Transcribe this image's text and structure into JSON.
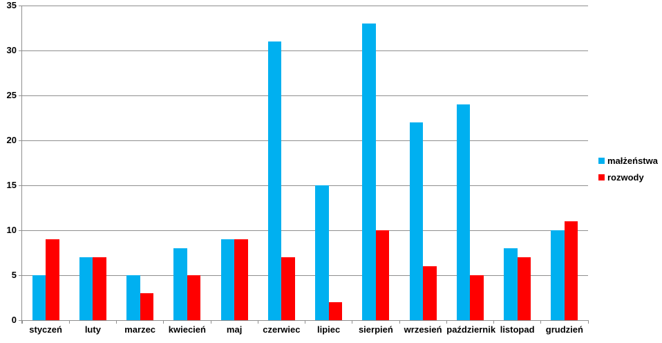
{
  "chart_data": {
    "type": "bar",
    "categories": [
      "styczeń",
      "luty",
      "marzec",
      "kwiecień",
      "maj",
      "czerwiec",
      "lipiec",
      "sierpień",
      "wrzesień",
      "październik",
      "listopad",
      "grudzień"
    ],
    "series": [
      {
        "name": "małżeństwa",
        "color": "#00B0F0",
        "values": [
          5,
          7,
          5,
          8,
          9,
          31,
          15,
          33,
          22,
          24,
          8,
          10
        ]
      },
      {
        "name": "rozwody",
        "color": "#FF0000",
        "values": [
          9,
          7,
          3,
          5,
          9,
          7,
          2,
          10,
          6,
          5,
          7,
          11
        ]
      }
    ],
    "title": "",
    "xlabel": "",
    "ylabel": "",
    "ylim": [
      0,
      35
    ],
    "yticks": [
      0,
      5,
      10,
      15,
      20,
      25,
      30,
      35
    ],
    "grid": "horizontal",
    "legend_position": "right",
    "grid_color": "#8E8E8E",
    "axis_color": "#8E8E8E",
    "text_color": "#000000"
  }
}
